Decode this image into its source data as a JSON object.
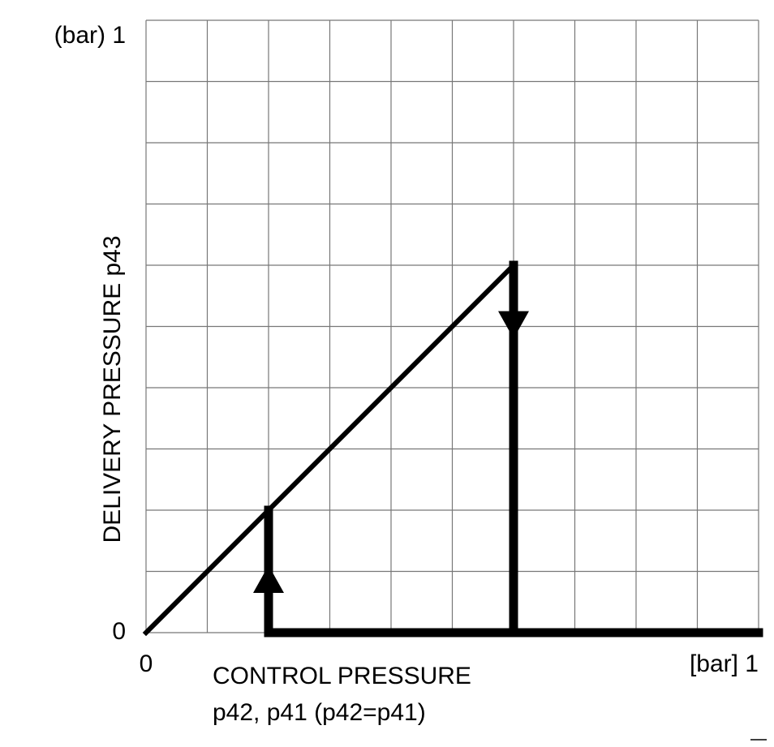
{
  "chart_data": {
    "type": "line",
    "ylabel": "DELIVERY PRESSURE p43",
    "xlabel": [
      "CONTROL PRESSURE",
      "p42, p41 (p42=p41)"
    ],
    "xlim": [
      0,
      1
    ],
    "ylim": [
      0,
      1
    ],
    "xticks": [
      0,
      {
        "value": 1,
        "label": "[bar] 1"
      }
    ],
    "yticks": [
      0,
      {
        "value": 1,
        "label": "(bar) 1"
      }
    ],
    "xgrid": [
      0,
      0.1,
      0.2,
      0.3,
      0.4,
      0.5,
      0.6,
      0.7,
      0.8,
      0.9,
      1
    ],
    "ygrid": [
      0,
      0.1,
      0.2,
      0.3,
      0.4,
      0.5,
      0.6,
      0.7,
      0.8,
      0.9,
      1
    ],
    "grid": true,
    "series": [
      {
        "color": "#000000",
        "width": 6,
        "x": [
          0,
          0.6
        ],
        "values": [
          0,
          0.6
        ]
      },
      {
        "color": "#000000",
        "width": 11,
        "arrow": true,
        "x": [
          1,
          0.2,
          0.2
        ],
        "values": [
          0,
          0,
          0.2
        ]
      },
      {
        "color": "#000000",
        "width": 11,
        "arrow": true,
        "x": [
          0.6,
          0.6
        ],
        "values": [
          0.6,
          0
        ]
      }
    ]
  }
}
